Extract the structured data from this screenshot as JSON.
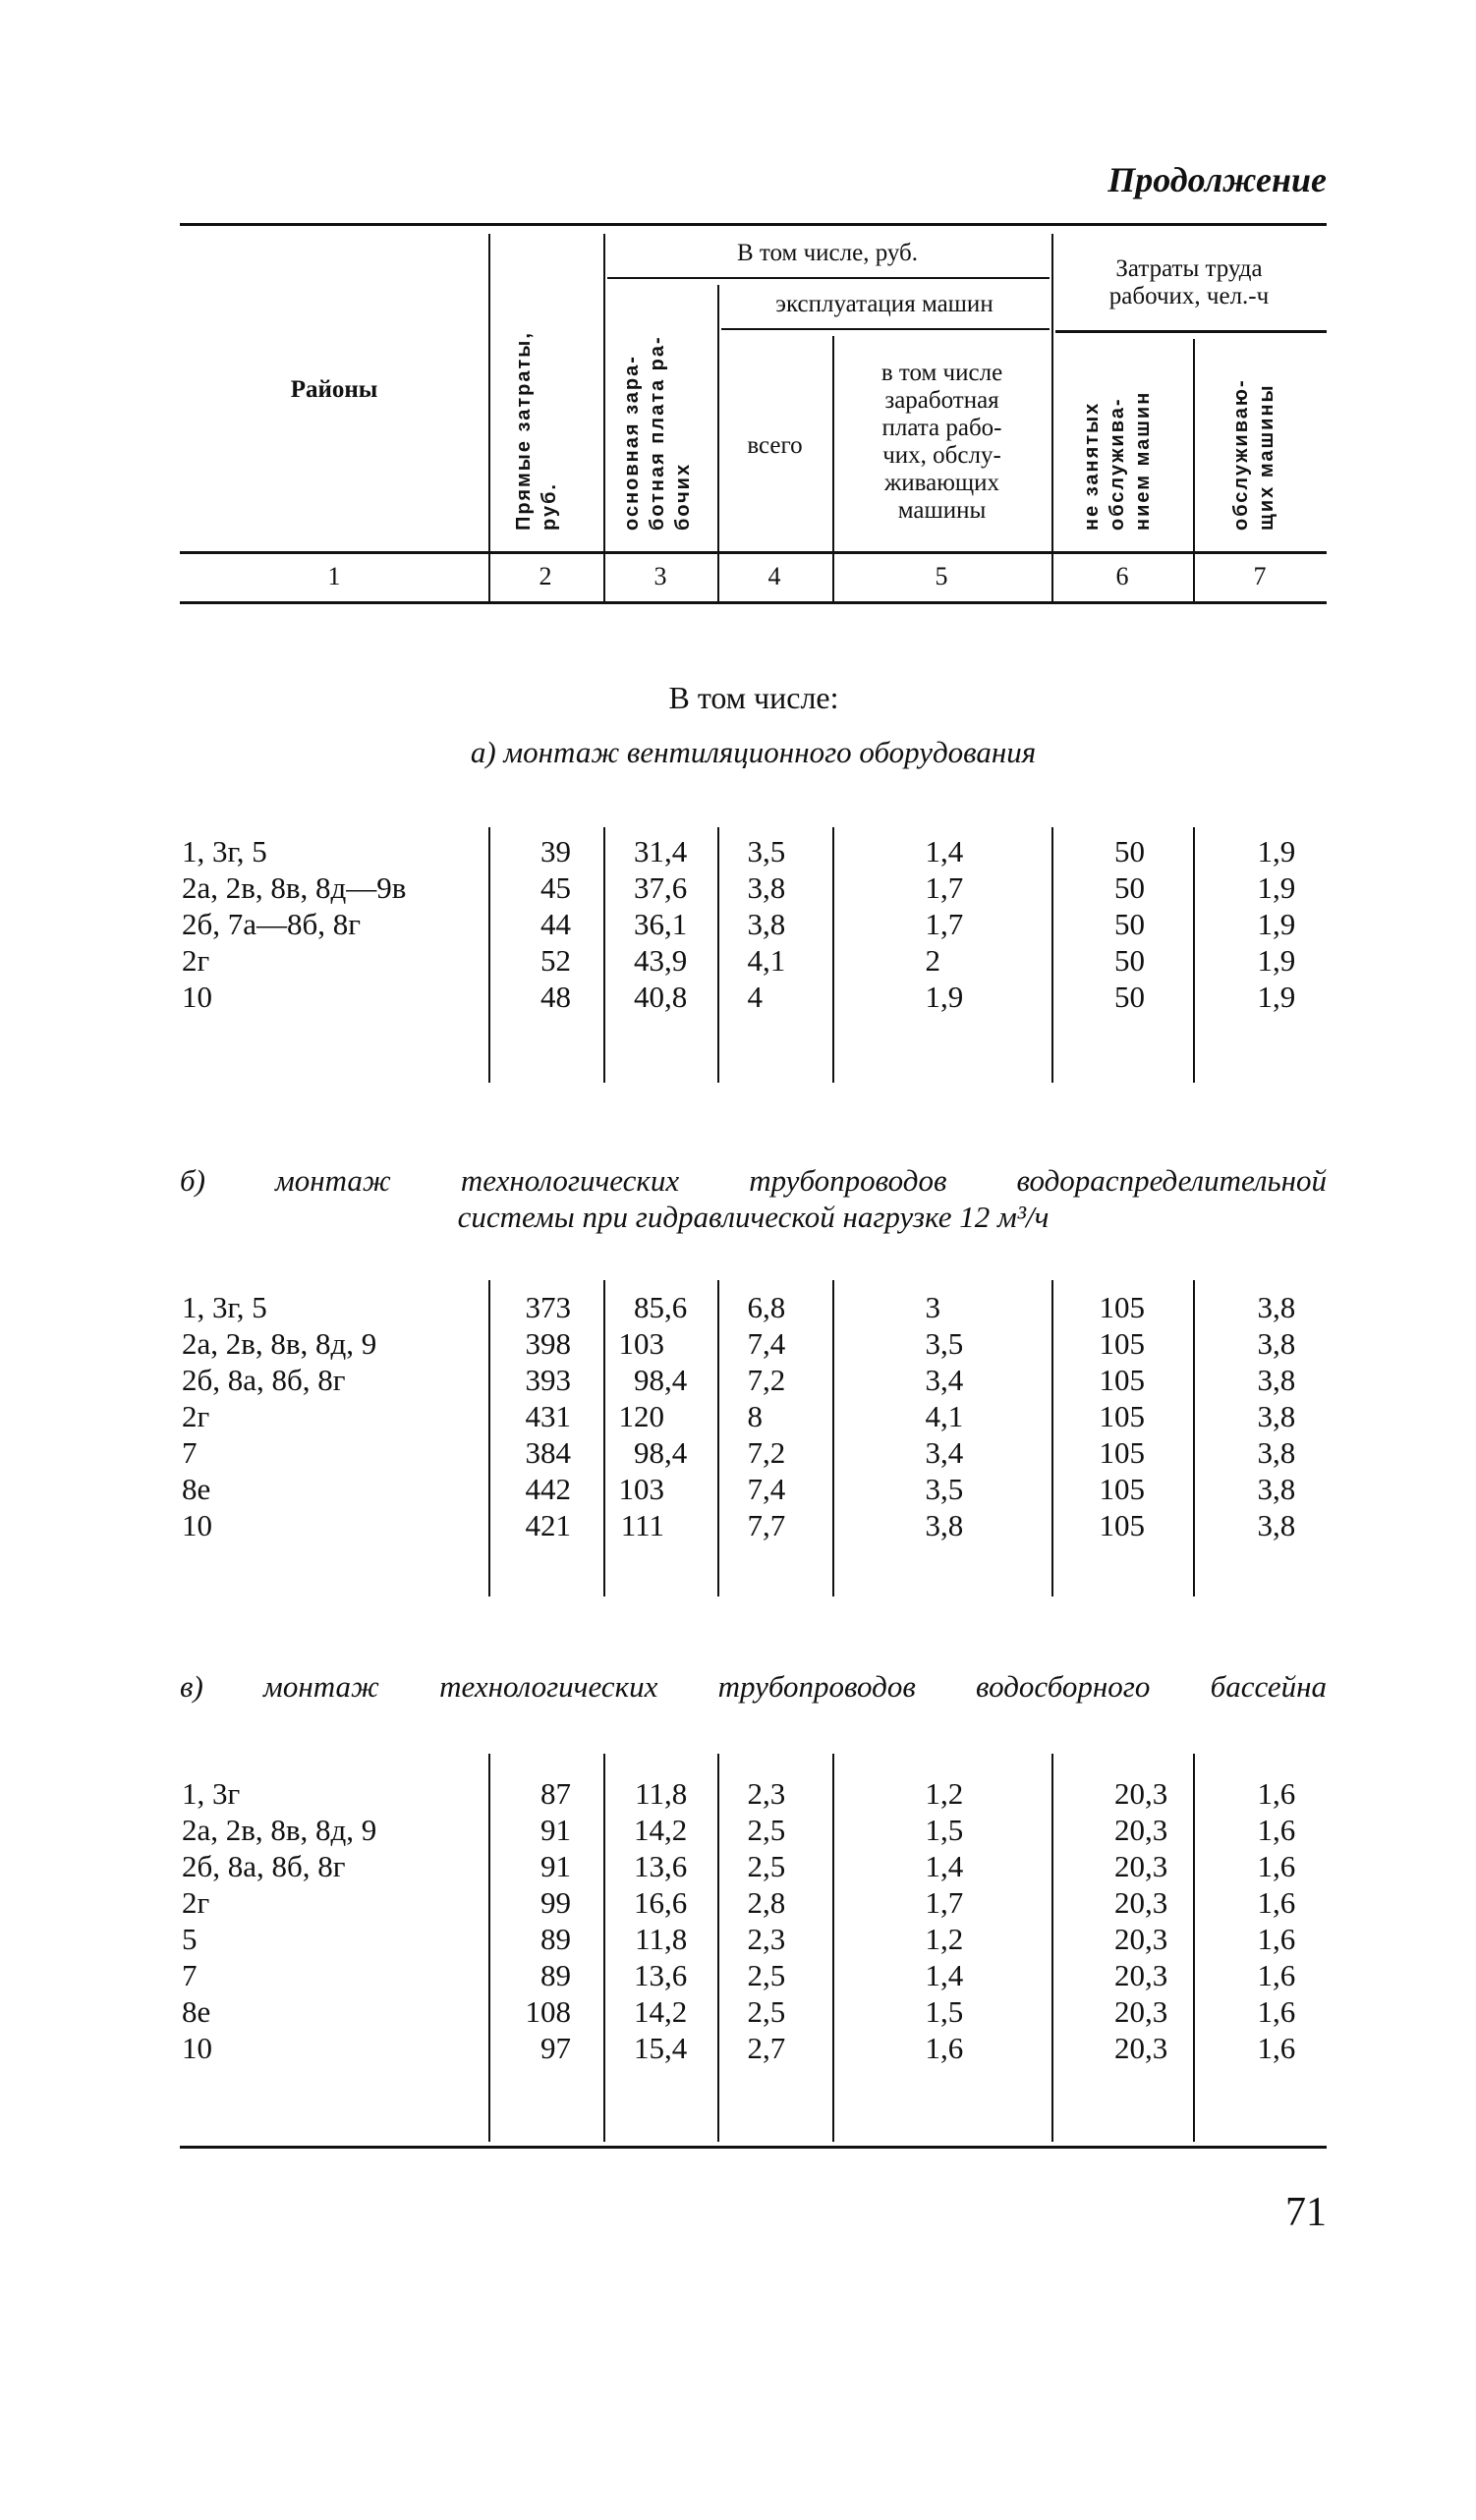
{
  "continuation": "Продолжение",
  "header": {
    "col1": "Районы",
    "col2": "Прямые затраты,\nруб.",
    "group_rub": "В том числе, руб.",
    "col3": "основная зара-\nботная плата ра-\nбочих",
    "group_machines": "эксплуатация машин",
    "col4": "всего",
    "col5_lines": [
      "в том числе",
      "заработная",
      "плата рабо-",
      "чих, обслу-",
      "живающих",
      "машины"
    ],
    "group_labor_lines": [
      "Затраты труда",
      "рабочих, чел.-ч"
    ],
    "col6": "не занятых\nобслужива-\nнием машин",
    "col7": "обслуживаю-\nщих машины"
  },
  "column_numbers": [
    "1",
    "2",
    "3",
    "4",
    "5",
    "6",
    "7"
  ],
  "intro": "В том числе:",
  "sections": [
    {
      "title_lines": [
        "а) монтаж вентиляционного оборудования"
      ],
      "rows": [
        [
          "1, 3г, 5",
          "39",
          "31,4",
          "3,5",
          "1,4",
          "50",
          "1,9"
        ],
        [
          "2а, 2в, 8в, 8д—9в",
          "45",
          "37,6",
          "3,8",
          "1,7",
          "50",
          "1,9"
        ],
        [
          "2б, 7а—8б, 8г",
          "44",
          "36,1",
          "3,8",
          "1,7",
          "50",
          "1,9"
        ],
        [
          "2г",
          "52",
          "43,9",
          "4,1",
          "2",
          "50",
          "1,9"
        ],
        [
          "10",
          "48",
          "40,8",
          "4",
          "1,9",
          "50",
          "1,9"
        ]
      ]
    },
    {
      "title_lines": [
        "б) монтаж технологических трубопроводов водораспределительной",
        "системы при гидравлической нагрузке 12 м³/ч"
      ],
      "rows": [
        [
          "1, 3г, 5",
          "373",
          "85,6",
          "6,8",
          "3",
          "105",
          "3,8"
        ],
        [
          "2а, 2в, 8в, 8д, 9",
          "398",
          "103",
          "7,4",
          "3,5",
          "105",
          "3,8"
        ],
        [
          "2б, 8а, 8б, 8г",
          "393",
          "98,4",
          "7,2",
          "3,4",
          "105",
          "3,8"
        ],
        [
          "2г",
          "431",
          "120",
          "8",
          "4,1",
          "105",
          "3,8"
        ],
        [
          "7",
          "384",
          "98,4",
          "7,2",
          "3,4",
          "105",
          "3,8"
        ],
        [
          "8е",
          "442",
          "103",
          "7,4",
          "3,5",
          "105",
          "3,8"
        ],
        [
          "10",
          "421",
          "111",
          "7,7",
          "3,8",
          "105",
          "3,8"
        ]
      ]
    },
    {
      "title_lines": [
        "в) монтаж технологических трубопроводов водосборного бассейна"
      ],
      "rows": [
        [
          "1, 3г",
          "87",
          "11,8",
          "2,3",
          "1,2",
          "20,3",
          "1,6"
        ],
        [
          "2а, 2в, 8в, 8д, 9",
          "91",
          "14,2",
          "2,5",
          "1,5",
          "20,3",
          "1,6"
        ],
        [
          "2б, 8а, 8б, 8г",
          "91",
          "13,6",
          "2,5",
          "1,4",
          "20,3",
          "1,6"
        ],
        [
          "2г",
          "99",
          "16,6",
          "2,8",
          "1,7",
          "20,3",
          "1,6"
        ],
        [
          "5",
          "89",
          "11,8",
          "2,3",
          "1,2",
          "20,3",
          "1,6"
        ],
        [
          "7",
          "89",
          "13,6",
          "2,5",
          "1,4",
          "20,3",
          "1,6"
        ],
        [
          "8е",
          "108",
          "14,2",
          "2,5",
          "1,5",
          "20,3",
          "1,6"
        ],
        [
          "10",
          "97",
          "15,4",
          "2,7",
          "1,6",
          "20,3",
          "1,6"
        ]
      ]
    }
  ],
  "page_number": "71"
}
